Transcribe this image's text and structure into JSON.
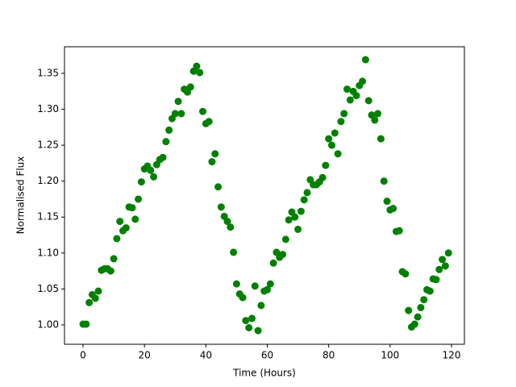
{
  "chart_data": {
    "type": "scatter",
    "x_label": "Time (Hours)",
    "y_label": "Normalised Flux",
    "color": "#008000",
    "x": [
      0,
      1,
      2,
      3,
      4,
      5,
      6,
      7,
      8,
      9,
      10,
      11,
      12,
      13,
      14,
      15,
      16,
      17,
      18,
      19,
      20,
      21,
      22,
      23,
      24,
      25,
      26,
      27,
      28,
      29,
      30,
      31,
      32,
      33,
      34,
      35,
      36,
      37,
      38,
      39,
      40,
      41,
      42,
      43,
      44,
      45,
      46,
      47,
      48,
      49,
      50,
      51,
      52,
      53,
      54,
      55,
      56,
      57,
      58,
      59,
      60,
      61,
      62,
      63,
      64,
      65,
      66,
      67,
      68,
      69,
      70,
      71,
      72,
      73,
      74,
      75,
      76,
      77,
      78,
      79,
      80,
      81,
      82,
      83,
      84,
      85,
      86,
      87,
      88,
      89,
      90,
      91,
      92,
      93,
      94,
      95,
      96,
      97,
      98,
      99,
      100,
      101,
      102,
      103,
      104,
      105,
      106,
      107,
      108,
      109,
      110,
      111,
      112,
      113,
      114,
      115,
      116,
      117,
      118,
      119
    ],
    "values": [
      1.001,
      1.001,
      1.031,
      1.042,
      1.037,
      1.047,
      1.076,
      1.078,
      1.078,
      1.075,
      1.092,
      1.12,
      1.144,
      1.131,
      1.135,
      1.164,
      1.163,
      1.147,
      1.175,
      1.199,
      1.217,
      1.221,
      1.215,
      1.206,
      1.223,
      1.23,
      1.233,
      1.255,
      1.271,
      1.287,
      1.294,
      1.311,
      1.294,
      1.328,
      1.324,
      1.331,
      1.353,
      1.36,
      1.351,
      1.297,
      1.28,
      1.283,
      1.227,
      1.238,
      1.192,
      1.164,
      1.151,
      1.144,
      1.136,
      1.101,
      1.057,
      1.043,
      1.038,
      1.006,
      0.996,
      1.009,
      1.054,
      0.992,
      1.027,
      1.047,
      1.049,
      1.057,
      1.086,
      1.101,
      1.094,
      1.098,
      1.119,
      1.146,
      1.157,
      1.15,
      1.133,
      1.158,
      1.174,
      1.184,
      1.202,
      1.195,
      1.195,
      1.199,
      1.205,
      1.222,
      1.259,
      1.25,
      1.267,
      1.238,
      1.283,
      1.294,
      1.328,
      1.313,
      1.325,
      1.319,
      1.333,
      1.339,
      1.369,
      1.312,
      1.292,
      1.285,
      1.294,
      1.259,
      1.2,
      1.172,
      1.16,
      1.162,
      1.13,
      1.131,
      1.074,
      1.071,
      1.02,
      0.997,
      1.001,
      1.011,
      1.024,
      1.035,
      1.049,
      1.047,
      1.064,
      1.063,
      1.077,
      1.091,
      1.082,
      1.1
    ],
    "xlim": [
      -6.04,
      124.2
    ],
    "ylim": [
      0.973,
      1.387
    ],
    "xticks": [
      0,
      20,
      40,
      60,
      80,
      100,
      120
    ],
    "yticks": [
      {
        "value": 1.0,
        "label": "1.00"
      },
      1.05,
      {
        "value": 1.1,
        "label": "1.10"
      },
      1.15,
      {
        "value": 1.2,
        "label": "1.20"
      },
      1.25,
      {
        "value": 1.3,
        "label": "1.30"
      },
      1.35
    ]
  }
}
